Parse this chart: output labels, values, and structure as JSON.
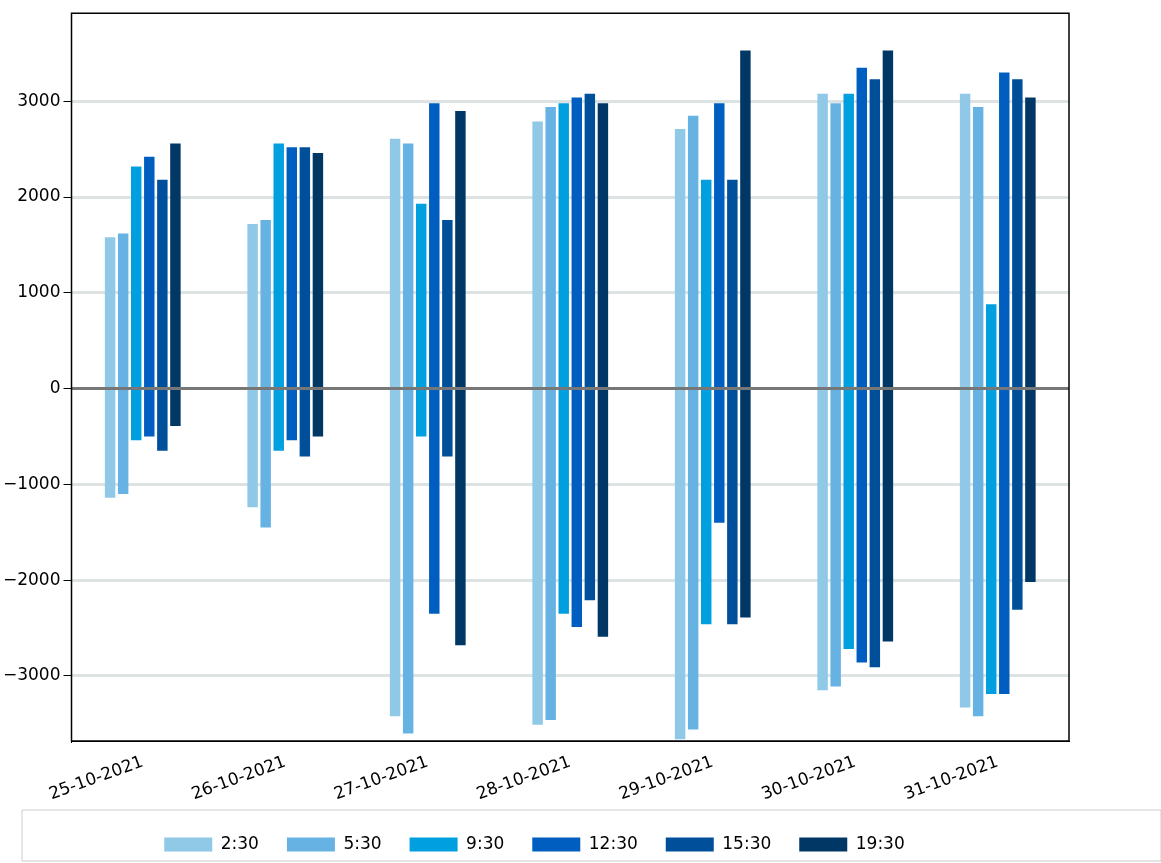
{
  "chart_data": {
    "type": "bar",
    "categories": [
      "25-10-2021",
      "26-10-2021",
      "27-10-2021",
      "28-10-2021",
      "29-10-2021",
      "30-10-2021",
      "31-10-2021"
    ],
    "series": [
      {
        "name": "2:30",
        "color": "#90c8e8",
        "base": [
          -1140,
          -1240,
          -3420,
          -3510,
          -3660,
          -3150,
          -3330
        ],
        "values": [
          2720,
          2960,
          6030,
          6300,
          6370,
          6230,
          6410
        ]
      },
      {
        "name": "5:30",
        "color": "#66b3e3",
        "base": [
          -1100,
          -1450,
          -3600,
          -3460,
          -3560,
          -3110,
          -3420
        ],
        "values": [
          2720,
          3210,
          6160,
          6400,
          6410,
          6090,
          6360
        ]
      },
      {
        "name": "9:30",
        "color": "#009fdf",
        "base": [
          -540,
          -650,
          -500,
          -2350,
          -2460,
          -2720,
          -3190
        ],
        "values": [
          2860,
          3210,
          2430,
          5330,
          4640,
          5800,
          4070
        ]
      },
      {
        "name": "12:30",
        "color": "#005ec0",
        "base": [
          -500,
          -540,
          -2350,
          -2490,
          -1400,
          -2860,
          -3190
        ],
        "values": [
          2920,
          3060,
          5330,
          5530,
          4380,
          6210,
          6490
        ]
      },
      {
        "name": "15:30",
        "color": "#004f9a",
        "base": [
          -650,
          -710,
          -710,
          -2210,
          -2460,
          -2910,
          -2310
        ],
        "values": [
          2830,
          3230,
          2470,
          5290,
          4640,
          6140,
          5540
        ]
      },
      {
        "name": "19:30",
        "color": "#003764",
        "base": [
          -390,
          -500,
          -2680,
          -2590,
          -2390,
          -2640,
          -2020
        ],
        "values": [
          2950,
          2960,
          5580,
          5570,
          5920,
          6170,
          5060
        ]
      }
    ],
    "ylim": [
      -3680,
      3920
    ],
    "yticks": [
      {
        "value": -3000,
        "label": "−3000"
      },
      {
        "value": -2000,
        "label": "−2000"
      },
      {
        "value": -1000,
        "label": "−1000"
      },
      0,
      1000,
      2000,
      3000
    ],
    "ref_lines": [
      {
        "axis": "y",
        "value": 0,
        "color": "#777777"
      }
    ],
    "grid": "y",
    "legend": "bottom"
  }
}
